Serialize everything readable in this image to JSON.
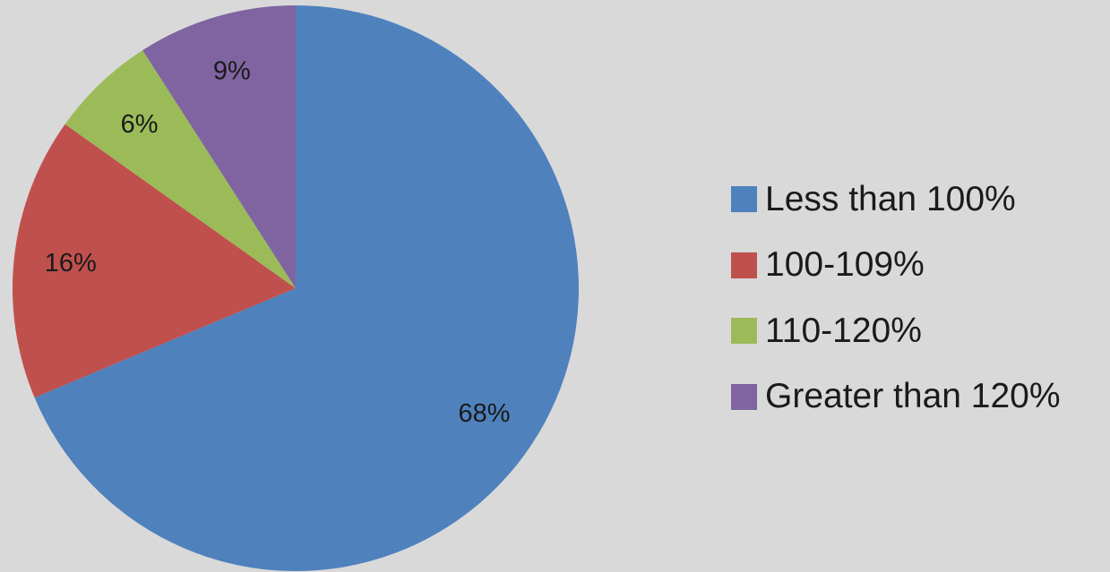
{
  "chart_data": {
    "type": "pie",
    "categories": [
      "Less than 100%",
      "100-109%",
      "110-120%",
      "Greater than 120%"
    ],
    "values": [
      68,
      16,
      6,
      9
    ],
    "data_labels": [
      "68%",
      "16%",
      "6%",
      "9%"
    ],
    "colors": [
      "#4f81bd",
      "#c0504d",
      "#9bbb59",
      "#8064a2"
    ],
    "legend_position": "right",
    "start_angle": "top",
    "direction": "clockwise"
  }
}
